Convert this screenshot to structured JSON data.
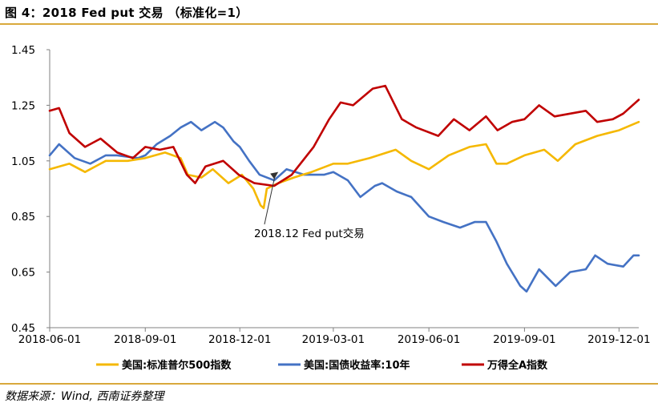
{
  "header": {
    "title": "图 4：2018 Fed put 交易 （标准化=1）"
  },
  "footer": {
    "source": "数据来源：Wind, 西南证券整理"
  },
  "colors": {
    "spx": "#F5B800",
    "ust10y": "#4472C4",
    "wind_a": "#C00000",
    "rule": "#D9A93C",
    "axis": "#808080"
  },
  "chart_data": {
    "type": "line",
    "title": "2018 Fed put 交易 （标准化=1）",
    "xlabel": "",
    "ylabel": "",
    "ylim": [
      0.45,
      1.45
    ],
    "yticks": [
      "1.45",
      "1.25",
      "1.05",
      "0.85",
      "0.65",
      "0.45"
    ],
    "xlim": [
      "2018-06-01",
      "2019-12-20"
    ],
    "xticks": [
      "2018-06-01",
      "2018-09-01",
      "2018-12-01",
      "2019-03-01",
      "2019-06-01",
      "2019-09-01",
      "2019-12-01"
    ],
    "grid": false,
    "legend_position": "bottom",
    "annotation": {
      "text": "2018.12 Fed put交易",
      "date": "2019-01-07",
      "value": 1.01
    },
    "series": [
      {
        "name": "美国:标准普尔500指数",
        "color": "#F5B800",
        "points": [
          [
            "2018-06-01",
            1.02
          ],
          [
            "2018-06-20",
            1.04
          ],
          [
            "2018-07-05",
            1.01
          ],
          [
            "2018-07-25",
            1.05
          ],
          [
            "2018-08-15",
            1.05
          ],
          [
            "2018-09-01",
            1.06
          ],
          [
            "2018-09-20",
            1.08
          ],
          [
            "2018-10-05",
            1.06
          ],
          [
            "2018-10-12",
            1.0
          ],
          [
            "2018-10-25",
            0.99
          ],
          [
            "2018-11-05",
            1.02
          ],
          [
            "2018-11-20",
            0.97
          ],
          [
            "2018-12-03",
            1.0
          ],
          [
            "2018-12-14",
            0.95
          ],
          [
            "2018-12-21",
            0.89
          ],
          [
            "2018-12-24",
            0.88
          ],
          [
            "2018-12-27",
            0.95
          ],
          [
            "2019-01-07",
            0.97
          ],
          [
            "2019-01-22",
            0.99
          ],
          [
            "2019-02-08",
            1.01
          ],
          [
            "2019-03-01",
            1.04
          ],
          [
            "2019-03-15",
            1.04
          ],
          [
            "2019-04-05",
            1.06
          ],
          [
            "2019-04-30",
            1.09
          ],
          [
            "2019-05-15",
            1.05
          ],
          [
            "2019-06-01",
            1.02
          ],
          [
            "2019-06-20",
            1.07
          ],
          [
            "2019-07-10",
            1.1
          ],
          [
            "2019-07-26",
            1.11
          ],
          [
            "2019-08-05",
            1.04
          ],
          [
            "2019-08-15",
            1.04
          ],
          [
            "2019-09-01",
            1.07
          ],
          [
            "2019-09-20",
            1.09
          ],
          [
            "2019-10-03",
            1.05
          ],
          [
            "2019-10-20",
            1.11
          ],
          [
            "2019-11-10",
            1.14
          ],
          [
            "2019-12-01",
            1.16
          ],
          [
            "2019-12-20",
            1.19
          ]
        ]
      },
      {
        "name": "美国:国债收益率:10年",
        "color": "#4472C4",
        "points": [
          [
            "2018-06-01",
            1.07
          ],
          [
            "2018-06-10",
            1.11
          ],
          [
            "2018-06-25",
            1.06
          ],
          [
            "2018-07-10",
            1.04
          ],
          [
            "2018-07-25",
            1.07
          ],
          [
            "2018-08-05",
            1.07
          ],
          [
            "2018-08-25",
            1.06
          ],
          [
            "2018-09-01",
            1.07
          ],
          [
            "2018-09-12",
            1.11
          ],
          [
            "2018-09-25",
            1.14
          ],
          [
            "2018-10-05",
            1.17
          ],
          [
            "2018-10-15",
            1.19
          ],
          [
            "2018-10-25",
            1.16
          ],
          [
            "2018-11-07",
            1.19
          ],
          [
            "2018-11-15",
            1.17
          ],
          [
            "2018-11-25",
            1.12
          ],
          [
            "2018-12-01",
            1.1
          ],
          [
            "2018-12-10",
            1.05
          ],
          [
            "2018-12-20",
            1.0
          ],
          [
            "2019-01-03",
            0.98
          ],
          [
            "2019-01-15",
            1.02
          ],
          [
            "2019-02-01",
            1.0
          ],
          [
            "2019-02-20",
            1.0
          ],
          [
            "2019-03-01",
            1.01
          ],
          [
            "2019-03-15",
            0.98
          ],
          [
            "2019-03-27",
            0.92
          ],
          [
            "2019-04-10",
            0.96
          ],
          [
            "2019-04-17",
            0.97
          ],
          [
            "2019-05-01",
            0.94
          ],
          [
            "2019-05-15",
            0.92
          ],
          [
            "2019-06-01",
            0.85
          ],
          [
            "2019-06-15",
            0.83
          ],
          [
            "2019-07-01",
            0.81
          ],
          [
            "2019-07-15",
            0.83
          ],
          [
            "2019-07-26",
            0.83
          ],
          [
            "2019-08-05",
            0.76
          ],
          [
            "2019-08-15",
            0.68
          ],
          [
            "2019-08-28",
            0.6
          ],
          [
            "2019-09-03",
            0.58
          ],
          [
            "2019-09-15",
            0.66
          ],
          [
            "2019-10-01",
            0.6
          ],
          [
            "2019-10-15",
            0.65
          ],
          [
            "2019-10-30",
            0.66
          ],
          [
            "2019-11-08",
            0.71
          ],
          [
            "2019-11-20",
            0.68
          ],
          [
            "2019-12-05",
            0.67
          ],
          [
            "2019-12-15",
            0.71
          ],
          [
            "2019-12-20",
            0.71
          ]
        ]
      },
      {
        "name": "万得全A指数",
        "color": "#C00000",
        "points": [
          [
            "2018-06-01",
            1.23
          ],
          [
            "2018-06-10",
            1.24
          ],
          [
            "2018-06-20",
            1.15
          ],
          [
            "2018-07-05",
            1.1
          ],
          [
            "2018-07-20",
            1.13
          ],
          [
            "2018-08-05",
            1.08
          ],
          [
            "2018-08-20",
            1.06
          ],
          [
            "2018-09-01",
            1.1
          ],
          [
            "2018-09-15",
            1.09
          ],
          [
            "2018-09-28",
            1.1
          ],
          [
            "2018-10-11",
            1.0
          ],
          [
            "2018-10-19",
            0.97
          ],
          [
            "2018-10-29",
            1.03
          ],
          [
            "2018-11-15",
            1.05
          ],
          [
            "2018-11-30",
            1.0
          ],
          [
            "2018-12-15",
            0.97
          ],
          [
            "2019-01-03",
            0.96
          ],
          [
            "2019-01-20",
            1.0
          ],
          [
            "2019-02-10",
            1.1
          ],
          [
            "2019-02-25",
            1.2
          ],
          [
            "2019-03-08",
            1.26
          ],
          [
            "2019-03-20",
            1.25
          ],
          [
            "2019-04-08",
            1.31
          ],
          [
            "2019-04-20",
            1.32
          ],
          [
            "2019-05-06",
            1.2
          ],
          [
            "2019-05-20",
            1.17
          ],
          [
            "2019-06-10",
            1.14
          ],
          [
            "2019-06-25",
            1.2
          ],
          [
            "2019-07-10",
            1.16
          ],
          [
            "2019-07-26",
            1.21
          ],
          [
            "2019-08-06",
            1.16
          ],
          [
            "2019-08-20",
            1.19
          ],
          [
            "2019-09-01",
            1.2
          ],
          [
            "2019-09-15",
            1.25
          ],
          [
            "2019-09-30",
            1.21
          ],
          [
            "2019-10-15",
            1.22
          ],
          [
            "2019-10-30",
            1.23
          ],
          [
            "2019-11-10",
            1.19
          ],
          [
            "2019-11-25",
            1.2
          ],
          [
            "2019-12-05",
            1.22
          ],
          [
            "2019-12-20",
            1.27
          ]
        ]
      }
    ]
  }
}
